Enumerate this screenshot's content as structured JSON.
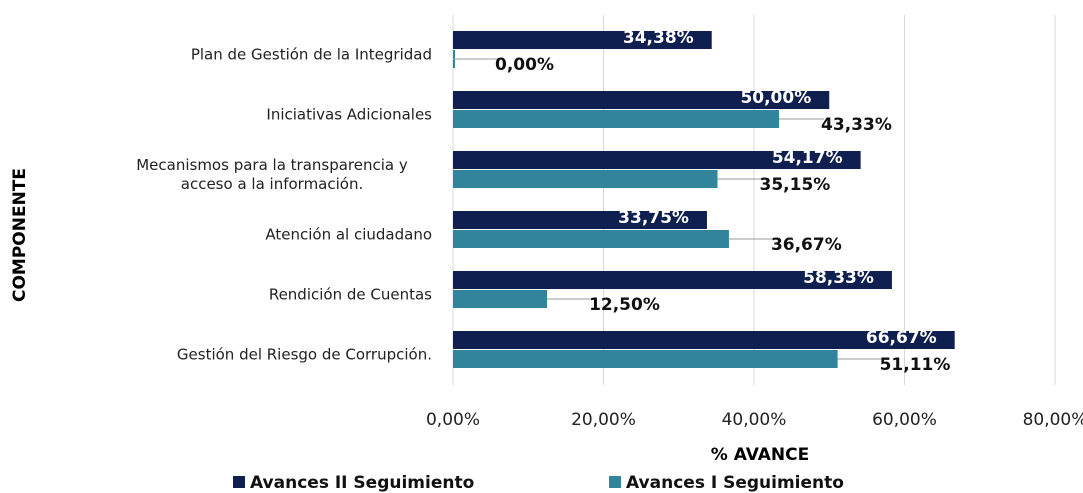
{
  "chart_data": {
    "type": "bar",
    "orientation": "horizontal",
    "xlabel": "% AVANCE",
    "ylabel": "COMPONENTE",
    "categories": [
      "Plan de Gestión de la Integridad",
      "Iniciativas Adicionales",
      "Mecanismos para la transparencia y acceso a la información.",
      "Atención al ciudadano",
      "Rendición de Cuentas",
      "Gestión del Riesgo de Corrupción."
    ],
    "series": [
      {
        "name": "Avances II Seguimiento",
        "color": "#0f1f4f",
        "values": [
          34.38,
          50.0,
          54.17,
          33.75,
          58.33,
          66.67
        ],
        "value_labels": [
          "34,38%",
          "50,00%",
          "54,17%",
          "33,75%",
          "58,33%",
          "66,67%"
        ]
      },
      {
        "name": "Avances I Seguimiento",
        "color": "#31849b",
        "values": [
          0,
          43.33,
          35.15,
          36.67,
          12.5,
          51.11
        ],
        "value_labels": [
          "0,00%",
          "43,33%",
          "35,15%",
          "36,67%",
          "12,50%",
          "51,11%"
        ]
      }
    ],
    "xlim": [
      0,
      80
    ],
    "xticks": [
      {
        "value": 0,
        "label": "0,00%"
      },
      {
        "value": 20,
        "label": "20,00%"
      },
      {
        "value": 40,
        "label": "40,00%"
      },
      {
        "value": 60,
        "label": "60,00%"
      },
      {
        "value": 80,
        "label": "80,00%"
      }
    ],
    "grid": true,
    "legend": "bottom"
  }
}
